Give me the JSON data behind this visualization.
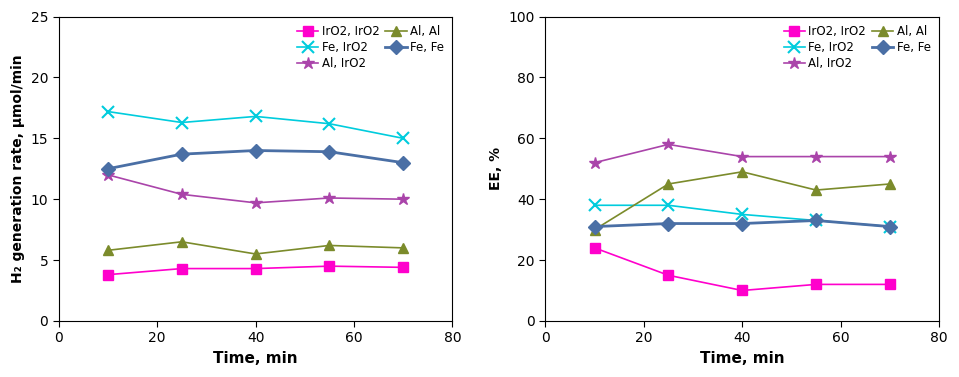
{
  "time": [
    10,
    25,
    40,
    55,
    70
  ],
  "left": {
    "ylabel": "H₂ generation rate, μmol/min",
    "xlabel": "Time, min",
    "ylim": [
      0,
      25
    ],
    "yticks": [
      0,
      5,
      10,
      15,
      20,
      25
    ],
    "xlim": [
      0,
      80
    ],
    "xticks": [
      0,
      20,
      40,
      60,
      80
    ],
    "series": {
      "IrO2, IrO2": {
        "values": [
          3.8,
          4.3,
          4.3,
          4.5,
          4.4
        ],
        "color": "#FF00CC",
        "marker": "s",
        "linestyle": "-",
        "linewidth": 1.2,
        "markersize": 7
      },
      "Fe, IrO2": {
        "values": [
          17.2,
          16.3,
          16.8,
          16.2,
          15.0
        ],
        "color": "#00CCDD",
        "marker": "x",
        "linestyle": "-",
        "linewidth": 1.2,
        "markersize": 8,
        "markeredgewidth": 1.5
      },
      "Al, IrO2": {
        "values": [
          12.0,
          10.4,
          9.7,
          10.1,
          10.0
        ],
        "color": "#AA44AA",
        "marker": "*",
        "linestyle": "-",
        "linewidth": 1.2,
        "markersize": 9
      },
      "Al, Al": {
        "values": [
          5.8,
          6.5,
          5.5,
          6.2,
          6.0
        ],
        "color": "#7B8B2B",
        "marker": "^",
        "linestyle": "-",
        "linewidth": 1.2,
        "markersize": 7
      },
      "Fe, Fe": {
        "values": [
          12.5,
          13.7,
          14.0,
          13.9,
          13.0
        ],
        "color": "#4A6FA5",
        "marker": "D",
        "linestyle": "-",
        "linewidth": 2.0,
        "markersize": 7
      }
    },
    "legend_order": [
      "IrO2, IrO2",
      "Fe, IrO2",
      "Al, IrO2",
      "Al, Al",
      "Fe, Fe"
    ]
  },
  "right": {
    "ylabel": "EE, %",
    "xlabel": "Time, min",
    "ylim": [
      0,
      100
    ],
    "yticks": [
      0,
      20,
      40,
      60,
      80,
      100
    ],
    "xlim": [
      0,
      80
    ],
    "xticks": [
      0,
      20,
      40,
      60,
      80
    ],
    "series": {
      "IrO2, IrO2": {
        "values": [
          24,
          15,
          10,
          12,
          12
        ],
        "color": "#FF00CC",
        "marker": "s",
        "linestyle": "-",
        "linewidth": 1.2,
        "markersize": 7
      },
      "Fe, IrO2": {
        "values": [
          38,
          38,
          35,
          33,
          31
        ],
        "color": "#00CCDD",
        "marker": "x",
        "linestyle": "-",
        "linewidth": 1.2,
        "markersize": 8,
        "markeredgewidth": 1.5
      },
      "Al, IrO2": {
        "values": [
          52,
          58,
          54,
          54,
          54
        ],
        "color": "#AA44AA",
        "marker": "*",
        "linestyle": "-",
        "linewidth": 1.2,
        "markersize": 9
      },
      "Al, Al": {
        "values": [
          30,
          45,
          49,
          43,
          45
        ],
        "color": "#7B8B2B",
        "marker": "^",
        "linestyle": "-",
        "linewidth": 1.2,
        "markersize": 7
      },
      "Fe, Fe": {
        "values": [
          31,
          32,
          32,
          33,
          31
        ],
        "color": "#4A6FA5",
        "marker": "D",
        "linestyle": "-",
        "linewidth": 2.0,
        "markersize": 7
      }
    },
    "legend_order": [
      "IrO2, IrO2",
      "Fe, IrO2",
      "Al, IrO2",
      "Al, Al",
      "Fe, Fe"
    ]
  }
}
